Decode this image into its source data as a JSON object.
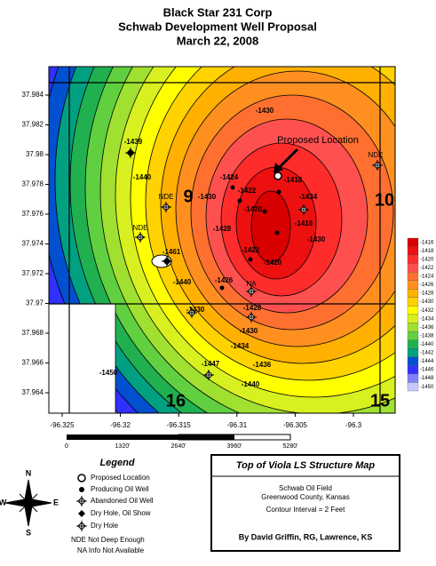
{
  "header": {
    "title": [
      "Black Star 231 Corp",
      "Schwab Development Well Proposal",
      "March 22, 2008"
    ]
  },
  "map": {
    "lat_ticks": [
      37.984,
      37.982,
      37.98,
      37.978,
      37.976,
      37.974,
      37.972,
      37.97,
      37.968,
      37.966,
      37.964
    ],
    "lon_ticks": [
      -96.325,
      -96.32,
      -96.315,
      -96.31,
      -96.305,
      -96.3
    ],
    "sections": [
      "9",
      "10",
      "16",
      "15"
    ],
    "contour_labels": [
      "-1439",
      "-1440",
      "-1430",
      "-1424",
      "-1422",
      "-1420",
      "-1418",
      "-1416",
      "-1422",
      "-1420",
      "-1426",
      "-1428",
      "-1430",
      "-1430",
      "-1434",
      "-1436",
      "-1440",
      "-1447",
      "-1450",
      "-1461",
      "-1430",
      "-1434",
      "-1430",
      "-1440",
      "-1428"
    ],
    "well_labels": [
      "NDE",
      "NDE",
      "NDE",
      "NA"
    ],
    "annotation": "Proposed Location"
  },
  "scale_bar": {
    "labels": [
      "0",
      "1320'",
      "2640'",
      "3960'",
      "5280'"
    ]
  },
  "color_scale": {
    "levels": [
      -1416,
      -1418,
      -1420,
      -1422,
      -1424,
      -1426,
      -1428,
      -1430,
      -1432,
      -1434,
      -1436,
      -1438,
      -1440,
      -1442,
      -1444,
      -1446,
      -1448,
      -1450
    ],
    "colors": [
      "#d80000",
      "#ec1010",
      "#ff2c2c",
      "#ff5050",
      "#ff7030",
      "#ff9020",
      "#ffb000",
      "#ffd200",
      "#ffff00",
      "#d8f020",
      "#a0e030",
      "#60d040",
      "#20b050",
      "#00a080",
      "#0050d0",
      "#3030ff",
      "#8080ff",
      "#c8c8ff"
    ]
  },
  "legend": {
    "title": "Legend",
    "items": [
      "Proposed Location",
      "Producing Oil Well",
      "Abandoned Oil Well",
      "Dry Hole, Oil Show",
      "Dry Hole"
    ],
    "notes": [
      "NDE Not Deep Enough",
      "NA  Info Not Available"
    ]
  },
  "compass": [
    "N",
    "E",
    "S",
    "W"
  ],
  "title_box": {
    "title": "Top of Viola LS Structure Map",
    "lines": [
      "Schwab Oil Field",
      "Greenwood County, Kansas",
      "Contour Interval = 2 Feet"
    ],
    "author": "By David Griffin, RG, Lawrence, KS"
  }
}
